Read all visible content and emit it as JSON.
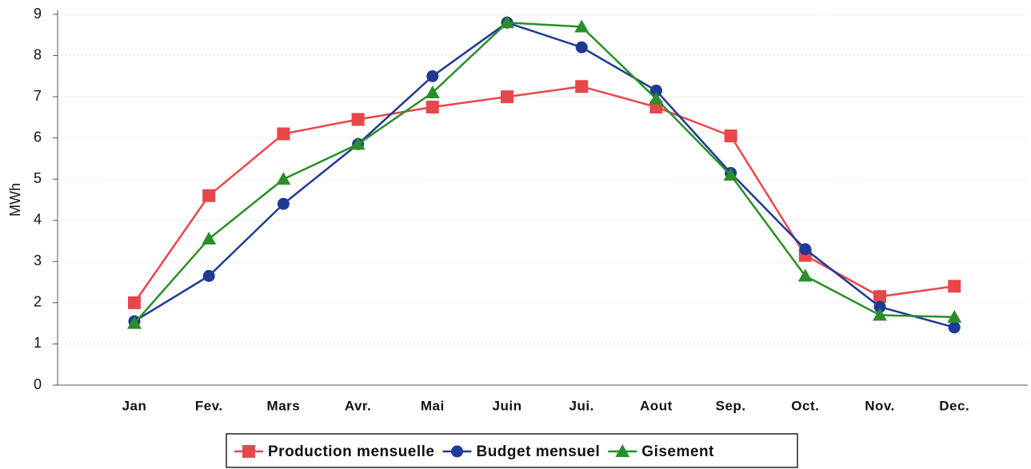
{
  "chart_data": {
    "type": "line",
    "y_label": "MWh",
    "categories": [
      "Jan",
      "Fev.",
      "Mars",
      "Avr.",
      "Mai",
      "Juin",
      "Jui.",
      "Aout",
      "Sep.",
      "Oct.",
      "Nov.",
      "Dec."
    ],
    "series": [
      {
        "name": "Production mensuelle",
        "color": "#e8474a",
        "marker": "square",
        "values": [
          2.0,
          4.6,
          6.1,
          6.45,
          6.75,
          7.0,
          7.25,
          6.75,
          6.05,
          3.15,
          2.15,
          2.4
        ]
      },
      {
        "name": "Budget mensuel",
        "color": "#1f3a93",
        "marker": "circle",
        "values": [
          1.55,
          2.65,
          4.4,
          5.85,
          7.5,
          8.8,
          8.2,
          7.15,
          5.15,
          3.3,
          1.9,
          1.4
        ]
      },
      {
        "name": "Gisement",
        "color": "#2a8f2a",
        "marker": "triangle",
        "values": [
          1.5,
          3.55,
          5.0,
          5.85,
          7.1,
          8.8,
          8.7,
          6.95,
          5.1,
          2.65,
          1.7,
          1.65
        ]
      }
    ],
    "ylim": [
      0,
      9
    ],
    "yticks": [
      0,
      1,
      2,
      3,
      4,
      5,
      6,
      7,
      8,
      9
    ],
    "grid": true
  }
}
